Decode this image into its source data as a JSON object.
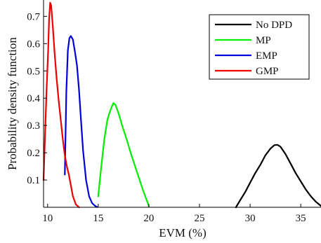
{
  "chart_data": {
    "type": "line",
    "xlabel": "EVM (%)",
    "ylabel": "Probability density function",
    "xlim": [
      9.6,
      37
    ],
    "ylim": [
      0,
      0.76
    ],
    "xticks": [
      10,
      15,
      20,
      25,
      30,
      35
    ],
    "xtick_labels": [
      "10",
      "15",
      "20",
      "25",
      "30",
      "35"
    ],
    "yticks": [
      0.1,
      0.2,
      0.3,
      0.4,
      0.5,
      0.6,
      0.7
    ],
    "ytick_labels": [
      "0.1",
      "0.2",
      "0.3",
      "0.4",
      "0.5",
      "0.6",
      "0.7"
    ],
    "grid": false,
    "legend_position": "top-right",
    "series": [
      {
        "name": "No DPD",
        "color": "#000000",
        "x": [
          28.6,
          29.0,
          29.5,
          30.0,
          30.5,
          31.0,
          31.5,
          32.0,
          32.4,
          32.7,
          33.0,
          33.5,
          34.0,
          34.5,
          35.0,
          35.5,
          36.0,
          36.5,
          37.0
        ],
        "y": [
          0.0,
          0.025,
          0.055,
          0.09,
          0.125,
          0.155,
          0.19,
          0.215,
          0.228,
          0.229,
          0.222,
          0.195,
          0.16,
          0.125,
          0.095,
          0.065,
          0.04,
          0.02,
          0.005
        ]
      },
      {
        "name": "MP",
        "color": "#00ee00",
        "x": [
          15.0,
          15.3,
          15.6,
          15.9,
          16.1,
          16.3,
          16.5,
          16.7,
          17.0,
          17.4,
          17.8,
          18.2,
          18.6,
          19.0,
          19.4,
          19.8,
          20.0
        ],
        "y": [
          0.04,
          0.15,
          0.25,
          0.32,
          0.345,
          0.365,
          0.382,
          0.375,
          0.345,
          0.295,
          0.25,
          0.2,
          0.155,
          0.11,
          0.065,
          0.025,
          0.005
        ]
      },
      {
        "name": "EMP",
        "color": "#0000dd",
        "x": [
          11.7,
          11.85,
          12.0,
          12.15,
          12.3,
          12.5,
          12.7,
          12.9,
          13.1,
          13.3,
          13.5,
          13.8,
          14.1,
          14.4,
          14.7,
          14.9
        ],
        "y": [
          0.12,
          0.42,
          0.575,
          0.62,
          0.628,
          0.615,
          0.57,
          0.52,
          0.43,
          0.32,
          0.21,
          0.1,
          0.04,
          0.015,
          0.005,
          0.001
        ]
      },
      {
        "name": "GMP",
        "color": "#ee0000",
        "x": [
          9.6,
          9.75,
          9.9,
          10.05,
          10.15,
          10.25,
          10.35,
          10.5,
          10.7,
          10.9,
          11.1,
          11.3,
          11.5,
          11.7,
          11.9,
          12.1,
          12.3,
          12.5,
          12.8,
          13.1
        ],
        "y": [
          0.1,
          0.27,
          0.43,
          0.57,
          0.69,
          0.75,
          0.74,
          0.67,
          0.56,
          0.47,
          0.39,
          0.32,
          0.25,
          0.19,
          0.15,
          0.12,
          0.08,
          0.04,
          0.01,
          0.0
        ]
      }
    ]
  }
}
